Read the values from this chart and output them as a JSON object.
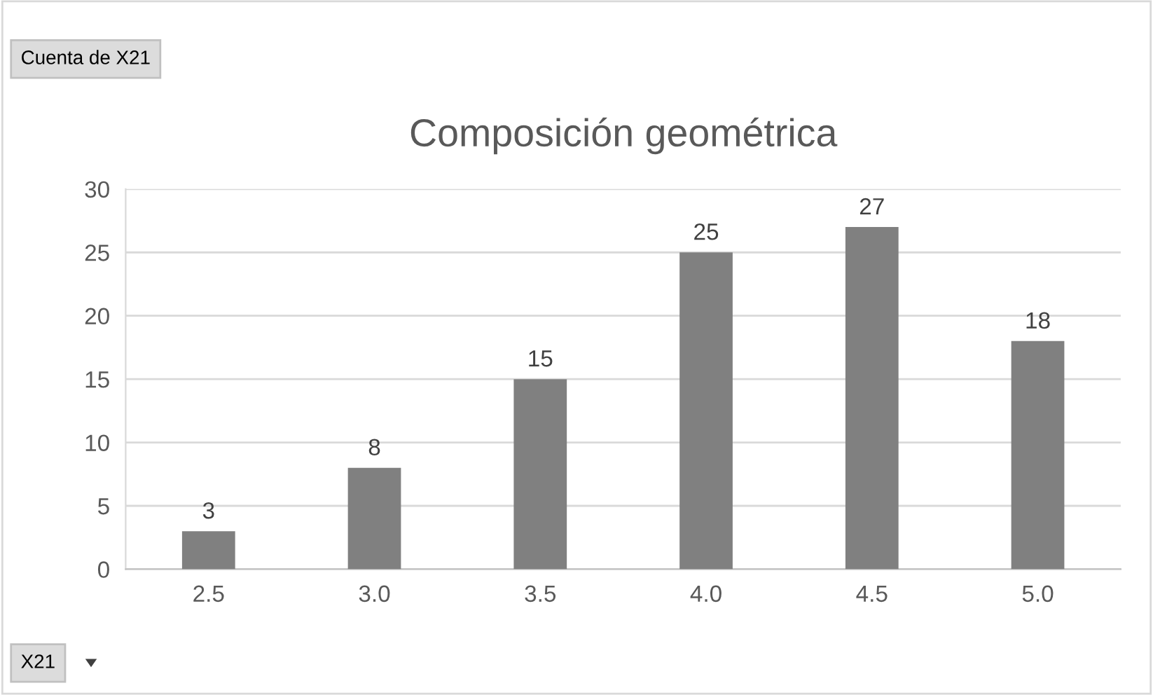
{
  "chart_data": {
    "type": "bar",
    "title": "Composición geométrica",
    "categories": [
      "2.5",
      "3.0",
      "3.5",
      "4.0",
      "4.5",
      "5.0"
    ],
    "values": [
      3,
      8,
      15,
      25,
      27,
      18
    ],
    "color": "#808080",
    "ylim": [
      0,
      30
    ],
    "yticks": [
      0,
      5,
      10,
      15,
      20,
      25,
      30
    ],
    "grid": "y",
    "data_labels": true,
    "legend": false,
    "annotations": [
      "Cuenta de X21",
      "X21"
    ]
  }
}
